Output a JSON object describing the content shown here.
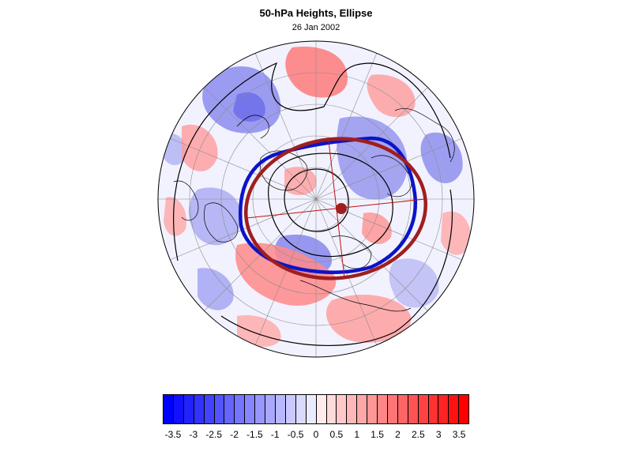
{
  "title": "50-hPa Heights, Ellipse",
  "date": "26 Jan 2002",
  "colors": {
    "negative_max": "#0000ff",
    "positive_max": "#ff0000",
    "neutral": "#ffffff",
    "ellipse_observed": "#0a14c8",
    "ellipse_fitted": "#a01e1e",
    "contour": "#000000",
    "coastline": "#000000",
    "gridline": "#8c8c8c"
  },
  "colorbar": {
    "min": -3.75,
    "max": 3.75,
    "step": 0.25,
    "tick_labels": [
      "-3.5",
      "-3",
      "-2.5",
      "-2",
      "-1.5",
      "-1",
      "-0.5",
      "0",
      "0.5",
      "1",
      "1.5",
      "2",
      "2.5",
      "3",
      "3.5"
    ],
    "tick_values": [
      -3.5,
      -3,
      -2.5,
      -2,
      -1.5,
      -1,
      -0.5,
      0,
      0.5,
      1,
      1.5,
      2,
      2.5,
      3,
      3.5
    ]
  },
  "legend_icons": {
    "map": "polar-stereographic-map",
    "pole_marker": "centroid-dot-icon"
  }
}
